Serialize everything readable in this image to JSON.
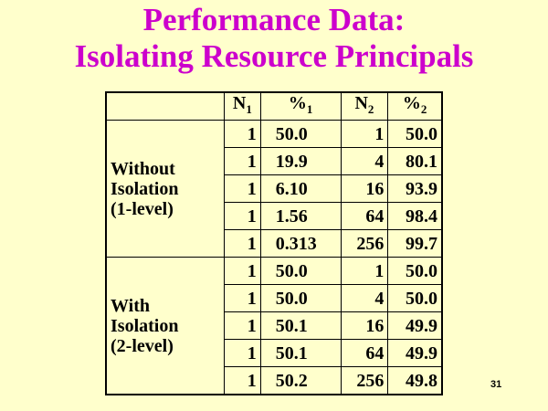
{
  "title": {
    "lines": [
      "Performance Data:",
      "Isolating Resource Principals"
    ]
  },
  "table": {
    "header": [
      {
        "text": "N",
        "sub": "1"
      },
      {
        "text": "%",
        "sub": "1"
      },
      {
        "text": "N",
        "sub": "2"
      },
      {
        "text": "%",
        "sub": "2"
      }
    ],
    "groups": [
      {
        "label": [
          "Without",
          "Isolation",
          "(1-level)"
        ],
        "rows": [
          [
            "1",
            "50.0",
            "1",
            "50.0"
          ],
          [
            "1",
            "19.9",
            "4",
            "80.1"
          ],
          [
            "1",
            "6.10",
            "16",
            "93.9"
          ],
          [
            "1",
            "1.56",
            "64",
            "98.4"
          ],
          [
            "1",
            "0.313",
            "256",
            "99.7"
          ]
        ]
      },
      {
        "label": [
          "With",
          "Isolation",
          "(2-level)"
        ],
        "rows": [
          [
            "1",
            "50.0",
            "1",
            "50.0"
          ],
          [
            "1",
            "50.0",
            "4",
            "50.0"
          ],
          [
            "1",
            "50.1",
            "16",
            "49.9"
          ],
          [
            "1",
            "50.1",
            "64",
            "49.9"
          ],
          [
            "1",
            "50.2",
            "256",
            "49.8"
          ]
        ]
      }
    ]
  },
  "page_number": "31"
}
